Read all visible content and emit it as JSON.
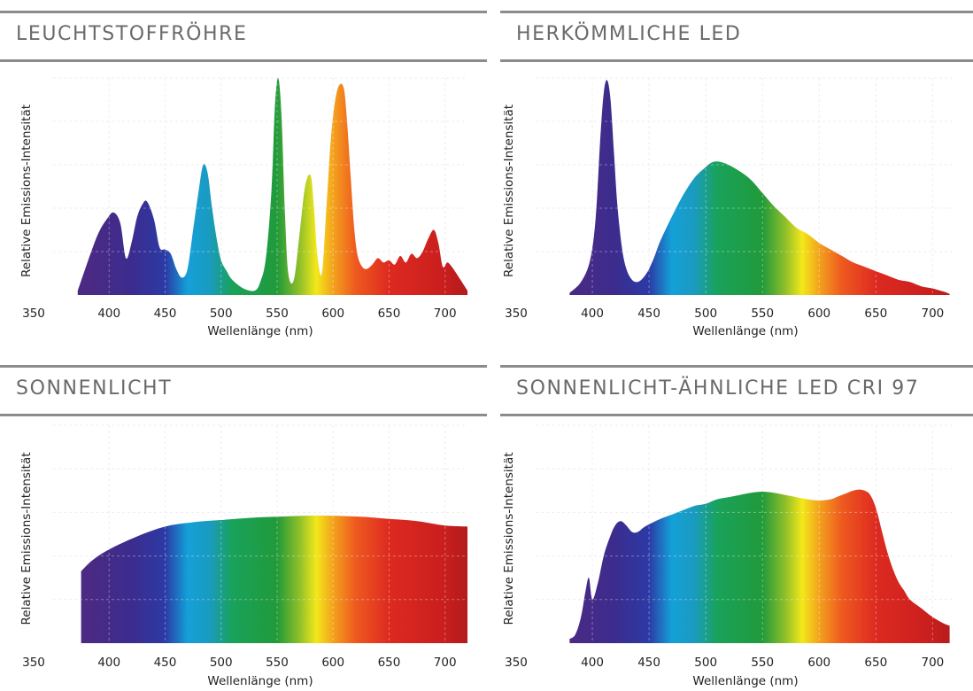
{
  "colors": {
    "title_text": "#6a6a6a",
    "rule": "#8c8c8c",
    "grid": "#e6e6e6",
    "spectrum_stops": [
      {
        "nm": 380,
        "color": "#4b2a83"
      },
      {
        "nm": 420,
        "color": "#3c2c8e"
      },
      {
        "nm": 450,
        "color": "#2c3aa5"
      },
      {
        "nm": 470,
        "color": "#14a0d8"
      },
      {
        "nm": 490,
        "color": "#1a9bbf"
      },
      {
        "nm": 510,
        "color": "#19a25b"
      },
      {
        "nm": 550,
        "color": "#219a3a"
      },
      {
        "nm": 570,
        "color": "#8fbf2a"
      },
      {
        "nm": 585,
        "color": "#f3e81a"
      },
      {
        "nm": 600,
        "color": "#f3a21d"
      },
      {
        "nm": 620,
        "color": "#ee5a1f"
      },
      {
        "nm": 650,
        "color": "#dd2a20"
      },
      {
        "nm": 700,
        "color": "#c81e1e"
      },
      {
        "nm": 720,
        "color": "#b31b1b"
      }
    ]
  },
  "chart_data": [
    {
      "type": "area",
      "title": "LEUCHTSTOFFRÖHRE",
      "xlabel": "Wellenlänge (nm)",
      "ylabel": "Relative Emissions-Intensität",
      "xticks": [
        350,
        400,
        450,
        500,
        550,
        600,
        650,
        700
      ],
      "xlim": [
        350,
        720
      ],
      "ylim": [
        0,
        1
      ],
      "grid": true,
      "x": [
        372,
        380,
        390,
        398,
        404,
        410,
        415,
        420,
        425,
        430,
        434,
        440,
        445,
        450,
        455,
        460,
        465,
        470,
        475,
        480,
        484,
        488,
        492,
        496,
        500,
        505,
        510,
        520,
        530,
        535,
        540,
        545,
        548,
        551,
        554,
        557,
        560,
        565,
        570,
        575,
        580,
        583,
        586,
        590,
        594,
        598,
        602,
        606,
        610,
        613,
        616,
        619,
        622,
        626,
        630,
        635,
        640,
        645,
        650,
        655,
        660,
        665,
        670,
        675,
        680,
        685,
        690,
        694,
        698,
        702,
        706,
        710,
        715,
        720
      ],
      "y": [
        0.02,
        0.14,
        0.28,
        0.35,
        0.38,
        0.33,
        0.17,
        0.24,
        0.36,
        0.42,
        0.43,
        0.35,
        0.22,
        0.21,
        0.19,
        0.12,
        0.08,
        0.12,
        0.3,
        0.48,
        0.6,
        0.56,
        0.4,
        0.26,
        0.16,
        0.11,
        0.07,
        0.03,
        0.02,
        0.06,
        0.17,
        0.48,
        0.86,
        1.0,
        0.82,
        0.38,
        0.1,
        0.07,
        0.28,
        0.5,
        0.55,
        0.4,
        0.18,
        0.1,
        0.4,
        0.72,
        0.9,
        0.97,
        0.94,
        0.76,
        0.52,
        0.3,
        0.18,
        0.13,
        0.12,
        0.14,
        0.17,
        0.15,
        0.16,
        0.14,
        0.18,
        0.15,
        0.19,
        0.17,
        0.2,
        0.26,
        0.3,
        0.24,
        0.13,
        0.15,
        0.13,
        0.1,
        0.06,
        0.02
      ]
    },
    {
      "type": "area",
      "title": "HERKÖMMLICHE LED",
      "xlabel": "Wellenlänge (nm)",
      "ylabel": "Relative Emissions-Intensität",
      "xticks": [
        350,
        400,
        450,
        500,
        550,
        600,
        650,
        700
      ],
      "xlim": [
        350,
        720
      ],
      "ylim": [
        0,
        1
      ],
      "grid": true,
      "x": [
        380,
        390,
        398,
        403,
        407,
        410,
        413,
        416,
        419,
        422,
        426,
        430,
        435,
        440,
        445,
        450,
        455,
        460,
        470,
        480,
        490,
        500,
        505,
        510,
        515,
        520,
        530,
        540,
        550,
        560,
        570,
        580,
        590,
        600,
        610,
        620,
        630,
        640,
        650,
        660,
        670,
        680,
        690,
        700,
        710,
        715
      ],
      "y": [
        0.01,
        0.06,
        0.16,
        0.36,
        0.72,
        0.93,
        0.99,
        0.9,
        0.66,
        0.42,
        0.22,
        0.12,
        0.07,
        0.06,
        0.08,
        0.12,
        0.18,
        0.25,
        0.36,
        0.46,
        0.54,
        0.59,
        0.61,
        0.615,
        0.61,
        0.6,
        0.57,
        0.53,
        0.47,
        0.41,
        0.36,
        0.31,
        0.28,
        0.24,
        0.21,
        0.18,
        0.15,
        0.13,
        0.11,
        0.09,
        0.07,
        0.06,
        0.04,
        0.03,
        0.015,
        0.005
      ]
    },
    {
      "type": "area",
      "title": "SONNENLICHT",
      "xlabel": "Wellenlänge (nm)",
      "ylabel": "Relative Emissions-Intensität",
      "xticks": [
        350,
        400,
        450,
        500,
        550,
        600,
        650,
        700
      ],
      "xlim": [
        350,
        720
      ],
      "ylim": [
        0,
        1
      ],
      "grid": true,
      "x": [
        375,
        385,
        400,
        425,
        450,
        475,
        500,
        525,
        550,
        575,
        600,
        625,
        650,
        675,
        700,
        720
      ],
      "y": [
        0.33,
        0.38,
        0.43,
        0.49,
        0.535,
        0.555,
        0.565,
        0.575,
        0.58,
        0.585,
        0.585,
        0.58,
        0.57,
        0.56,
        0.54,
        0.535
      ]
    },
    {
      "type": "area",
      "title": "SONNENLICHT-ÄHNLICHE LED CRI 97",
      "xlabel": "Wellenlänge (nm)",
      "ylabel": "Relative Emissions-Intensität",
      "xticks": [
        350,
        400,
        450,
        500,
        550,
        600,
        650,
        700
      ],
      "xlim": [
        350,
        720
      ],
      "ylim": [
        0,
        1
      ],
      "grid": true,
      "x": [
        380,
        385,
        390,
        394,
        397,
        400,
        405,
        410,
        415,
        420,
        425,
        430,
        435,
        440,
        445,
        450,
        460,
        470,
        480,
        490,
        500,
        510,
        520,
        530,
        540,
        550,
        560,
        570,
        580,
        590,
        600,
        610,
        615,
        620,
        625,
        630,
        635,
        640,
        645,
        650,
        655,
        660,
        665,
        670,
        675,
        680,
        690,
        700,
        710,
        715
      ],
      "y": [
        0.02,
        0.04,
        0.12,
        0.24,
        0.3,
        0.2,
        0.28,
        0.4,
        0.48,
        0.54,
        0.56,
        0.54,
        0.51,
        0.51,
        0.53,
        0.545,
        0.57,
        0.59,
        0.61,
        0.63,
        0.64,
        0.66,
        0.67,
        0.68,
        0.69,
        0.695,
        0.69,
        0.68,
        0.67,
        0.66,
        0.655,
        0.66,
        0.67,
        0.68,
        0.69,
        0.7,
        0.705,
        0.7,
        0.68,
        0.62,
        0.52,
        0.42,
        0.34,
        0.28,
        0.24,
        0.2,
        0.16,
        0.12,
        0.09,
        0.08
      ]
    }
  ]
}
